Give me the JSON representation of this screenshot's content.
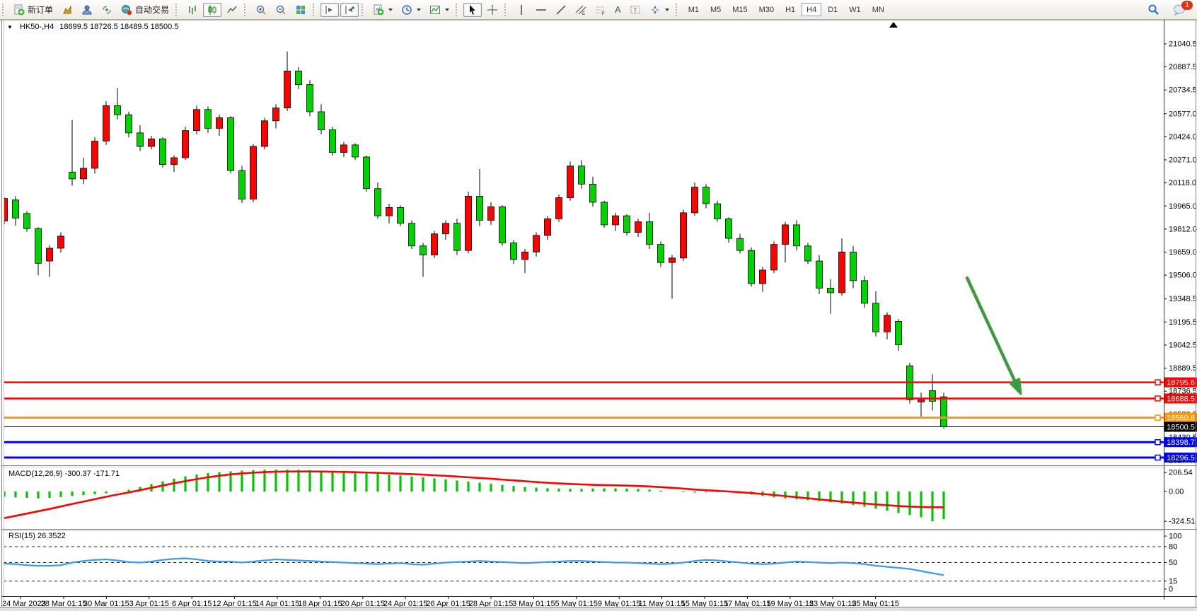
{
  "toolbar": {
    "new_order_label": "新订单",
    "autotrade_label": "自动交易",
    "timeframes": [
      {
        "label": "M1",
        "active": false
      },
      {
        "label": "M5",
        "active": false
      },
      {
        "label": "M15",
        "active": false
      },
      {
        "label": "M30",
        "active": false
      },
      {
        "label": "H1",
        "active": false
      },
      {
        "label": "H4",
        "active": true
      },
      {
        "label": "D1",
        "active": false
      },
      {
        "label": "W1",
        "active": false
      },
      {
        "label": "MN",
        "active": false
      }
    ],
    "text_tool_label": "A",
    "notification_badge": "1"
  },
  "chart_header": {
    "symbol_period": "HK50-,H4",
    "ohlc_text": "18699.5 18726.5 18489.5 18500.5"
  },
  "chart_data": {
    "type": "candlestick",
    "symbol": "HK50-",
    "period": "H4",
    "color_convention": "red=bullish, green=bearish",
    "colors": {
      "up": "#FF0000",
      "down": "#00D300",
      "outline": "#000000",
      "macd_hist": "#00C800",
      "macd_signal": "#FF0000",
      "rsi_line": "#3E9BE9",
      "arrow": "#3E9A3E"
    },
    "current_bar": {
      "open": 18699.5,
      "high": 18726.5,
      "low": 18489.5,
      "close": 18500.5
    },
    "price_axis_ticks": [
      "21040.5",
      "20887.5",
      "20734.5",
      "20577.0",
      "20424.0",
      "20271.0",
      "20118.0",
      "19965.0",
      "19812.0",
      "19659.0",
      "19506.0",
      "19348.5",
      "19195.5",
      "19042.5",
      "18889.5",
      "18736.5",
      "18583.5",
      "18430.5",
      "18277.5"
    ],
    "horizontal_lines": [
      {
        "price": 18795.6,
        "label": "18795.6",
        "color": "#FF0000",
        "width": 2.5,
        "handle": true
      },
      {
        "price": 18688.5,
        "label": "18688.5",
        "color": "#FF0000",
        "width": 2.5,
        "handle": true
      },
      {
        "price": 18560.8,
        "label": "18560.8",
        "color": "#FF9800",
        "width": 3,
        "handle": true
      },
      {
        "price": 18500.5,
        "label": "18500.5",
        "color": "#000000",
        "width": 1,
        "handle": false
      },
      {
        "price": 18398.7,
        "label": "18398.7",
        "color": "#0000FF",
        "width": 3,
        "handle": true
      },
      {
        "price": 18296.5,
        "label": "18296.5",
        "color": "#0000FF",
        "width": 3,
        "handle": true
      }
    ],
    "candles": [
      [
        19865,
        20025,
        19845,
        20015
      ],
      [
        20005,
        20030,
        19835,
        19885
      ],
      [
        19915,
        19930,
        19795,
        19815
      ],
      [
        19815,
        19825,
        19505,
        19585
      ],
      [
        19600,
        19705,
        19495,
        19685
      ],
      [
        19685,
        19790,
        19655,
        19765
      ],
      [
        20190,
        20535,
        20100,
        20145
      ],
      [
        20145,
        20285,
        20110,
        20215
      ],
      [
        20215,
        20420,
        20180,
        20395
      ],
      [
        20395,
        20660,
        20370,
        20630
      ],
      [
        20630,
        20745,
        20540,
        20570
      ],
      [
        20570,
        20590,
        20420,
        20450
      ],
      [
        20450,
        20500,
        20330,
        20360
      ],
      [
        20360,
        20430,
        20340,
        20410
      ],
      [
        20410,
        20420,
        20220,
        20240
      ],
      [
        20240,
        20300,
        20190,
        20285
      ],
      [
        20285,
        20490,
        20270,
        20465
      ],
      [
        20465,
        20630,
        20440,
        20605
      ],
      [
        20605,
        20625,
        20450,
        20480
      ],
      [
        20480,
        20570,
        20430,
        20550
      ],
      [
        20550,
        20560,
        20180,
        20200
      ],
      [
        20200,
        20230,
        19985,
        20010
      ],
      [
        20010,
        20375,
        19990,
        20360
      ],
      [
        20360,
        20550,
        20340,
        20530
      ],
      [
        20530,
        20640,
        20480,
        20615
      ],
      [
        20615,
        20990,
        20595,
        20860
      ],
      [
        20860,
        20885,
        20740,
        20770
      ],
      [
        20770,
        20800,
        20560,
        20590
      ],
      [
        20590,
        20640,
        20440,
        20470
      ],
      [
        20470,
        20490,
        20300,
        20320
      ],
      [
        20320,
        20390,
        20290,
        20370
      ],
      [
        20370,
        20380,
        20270,
        20290
      ],
      [
        20290,
        20300,
        20060,
        20080
      ],
      [
        20080,
        20120,
        19880,
        19900
      ],
      [
        19900,
        19980,
        19850,
        19955
      ],
      [
        19955,
        19970,
        19830,
        19850
      ],
      [
        19850,
        19870,
        19680,
        19700
      ],
      [
        19700,
        19720,
        19495,
        19640
      ],
      [
        19640,
        19800,
        19620,
        19780
      ],
      [
        19780,
        19870,
        19740,
        19850
      ],
      [
        19850,
        19880,
        19640,
        19670
      ],
      [
        19670,
        20060,
        19650,
        20030
      ],
      [
        20030,
        20210,
        19830,
        19870
      ],
      [
        19870,
        19990,
        19840,
        19960
      ],
      [
        19960,
        19970,
        19700,
        19720
      ],
      [
        19720,
        19740,
        19580,
        19610
      ],
      [
        19610,
        19680,
        19520,
        19660
      ],
      [
        19660,
        19790,
        19630,
        19770
      ],
      [
        19770,
        19900,
        19740,
        19880
      ],
      [
        19880,
        20040,
        19860,
        20020
      ],
      [
        20020,
        20260,
        20000,
        20230
      ],
      [
        20230,
        20270,
        20080,
        20110
      ],
      [
        20110,
        20160,
        19960,
        19990
      ],
      [
        19990,
        20000,
        19820,
        19840
      ],
      [
        19840,
        19920,
        19800,
        19900
      ],
      [
        19900,
        19910,
        19770,
        19790
      ],
      [
        19790,
        19880,
        19760,
        19860
      ],
      [
        19860,
        19920,
        19680,
        19710
      ],
      [
        19710,
        19730,
        19560,
        19590
      ],
      [
        19590,
        19640,
        19350,
        19620
      ],
      [
        19620,
        19940,
        19600,
        19920
      ],
      [
        19920,
        20120,
        19900,
        20090
      ],
      [
        20090,
        20110,
        19950,
        19980
      ],
      [
        19980,
        20000,
        19860,
        19880
      ],
      [
        19880,
        19890,
        19720,
        19750
      ],
      [
        19750,
        19780,
        19650,
        19670
      ],
      [
        19670,
        19690,
        19430,
        19450
      ],
      [
        19450,
        19560,
        19395,
        19540
      ],
      [
        19540,
        19730,
        19520,
        19710
      ],
      [
        19710,
        19860,
        19590,
        19840
      ],
      [
        19840,
        19870,
        19670,
        19700
      ],
      [
        19700,
        19720,
        19580,
        19600
      ],
      [
        19600,
        19640,
        19380,
        19420
      ],
      [
        19420,
        19480,
        19250,
        19390
      ],
      [
        19390,
        19750,
        19370,
        19660
      ],
      [
        19660,
        19700,
        19420,
        19470
      ],
      [
        19470,
        19500,
        19290,
        19320
      ],
      [
        19320,
        19400,
        19100,
        19130
      ],
      [
        19130,
        19260,
        19080,
        19240
      ],
      [
        19200,
        19215,
        19005,
        19045
      ],
      [
        18905,
        18925,
        18655,
        18680
      ],
      [
        18665,
        18727,
        18567,
        18680
      ],
      [
        18740,
        18849,
        18609,
        18670
      ],
      [
        18699.5,
        18726.5,
        18489.5,
        18500.5
      ]
    ],
    "indicators": {
      "macd": {
        "label": "MACD(12,26,9) -300.37 -171.71",
        "params": [
          12,
          26,
          9
        ],
        "macd_value": -300.37,
        "signal_value": -171.71,
        "scale_ticks": [
          "206.54",
          "0.00",
          "-324.51"
        ],
        "histogram": [
          -55,
          -65,
          -70,
          -75,
          -70,
          -60,
          -50,
          -40,
          -30,
          -20,
          -5,
          20,
          50,
          80,
          110,
          140,
          165,
          185,
          200,
          210,
          220,
          228,
          234,
          238,
          240,
          238,
          236,
          232,
          228,
          222,
          215,
          208,
          200,
          192,
          183,
          174,
          164,
          154,
          143,
          132,
          120,
          108,
          96,
          84,
          72,
          60,
          50,
          42,
          36,
          32,
          30,
          30,
          32,
          34,
          34,
          32,
          28,
          20,
          10,
          0,
          -8,
          -12,
          -10,
          -6,
          -10,
          -20,
          -34,
          -50,
          -64,
          -76,
          -86,
          -95,
          -105,
          -118,
          -132,
          -148,
          -166,
          -186,
          -208,
          -232,
          -256,
          -280,
          -324,
          -300
        ],
        "signal": [
          -290,
          -265,
          -240,
          -215,
          -190,
          -163,
          -136,
          -110,
          -84,
          -58,
          -33,
          -10,
          15,
          40,
          65,
          90,
          113,
          135,
          155,
          172,
          186,
          197,
          205,
          211,
          215,
          217,
          218,
          218,
          217,
          215,
          213,
          210,
          207,
          203,
          199,
          194,
          189,
          183,
          177,
          170,
          163,
          155,
          147,
          139,
          130,
          121,
          112,
          103,
          95,
          88,
          82,
          77,
          73,
          70,
          67,
          64,
          60,
          55,
          48,
          40,
          31,
          22,
          14,
          7,
          0,
          -8,
          -17,
          -27,
          -38,
          -50,
          -62,
          -74,
          -86,
          -98,
          -110,
          -121,
          -131,
          -141,
          -150,
          -158,
          -164,
          -169,
          -171,
          -172
        ]
      },
      "rsi": {
        "label": "RSI(15) 26.3522",
        "period": 15,
        "value": 26.3522,
        "level_labels": [
          "100",
          "80",
          "50",
          "15",
          "0"
        ],
        "dashed_levels": [
          80,
          50,
          15
        ],
        "values": [
          48,
          47,
          45,
          44,
          44,
          45,
          50,
          53,
          55,
          56,
          54,
          51,
          50,
          52,
          55,
          57,
          58,
          56,
          53,
          52,
          52,
          50,
          52,
          54,
          56,
          55,
          54,
          53,
          52,
          51,
          50,
          49,
          48,
          47,
          48,
          49,
          47,
          46,
          48,
          50,
          51,
          52,
          53,
          52,
          51,
          50,
          49,
          50,
          51,
          52,
          53,
          53,
          52,
          51,
          50,
          50,
          49,
          48,
          47,
          48,
          50,
          53,
          55,
          54,
          52,
          50,
          48,
          47,
          48,
          50,
          52,
          51,
          50,
          49,
          50,
          49,
          47,
          44,
          42,
          40,
          38,
          34,
          30,
          26.35
        ]
      }
    },
    "time_axis_labels": [
      "24 Mar 2023",
      "28 Mar 01:15",
      "30 Mar 01:15",
      "3 Apr 01:15",
      "6 Apr 01:15",
      "12 Apr 01:15",
      "14 Apr 01:15",
      "18 Apr 01:15",
      "20 Apr 01:15",
      "24 Apr 01:15",
      "26 Apr 01:15",
      "28 Apr 01:15",
      "3 May 01:15",
      "5 May 01:15",
      "9 May 01:15",
      "11 May 01:15",
      "15 May 01:15",
      "17 May 01:15",
      "19 May 01:15",
      "23 May 01:15",
      "25 May 01:15"
    ]
  }
}
